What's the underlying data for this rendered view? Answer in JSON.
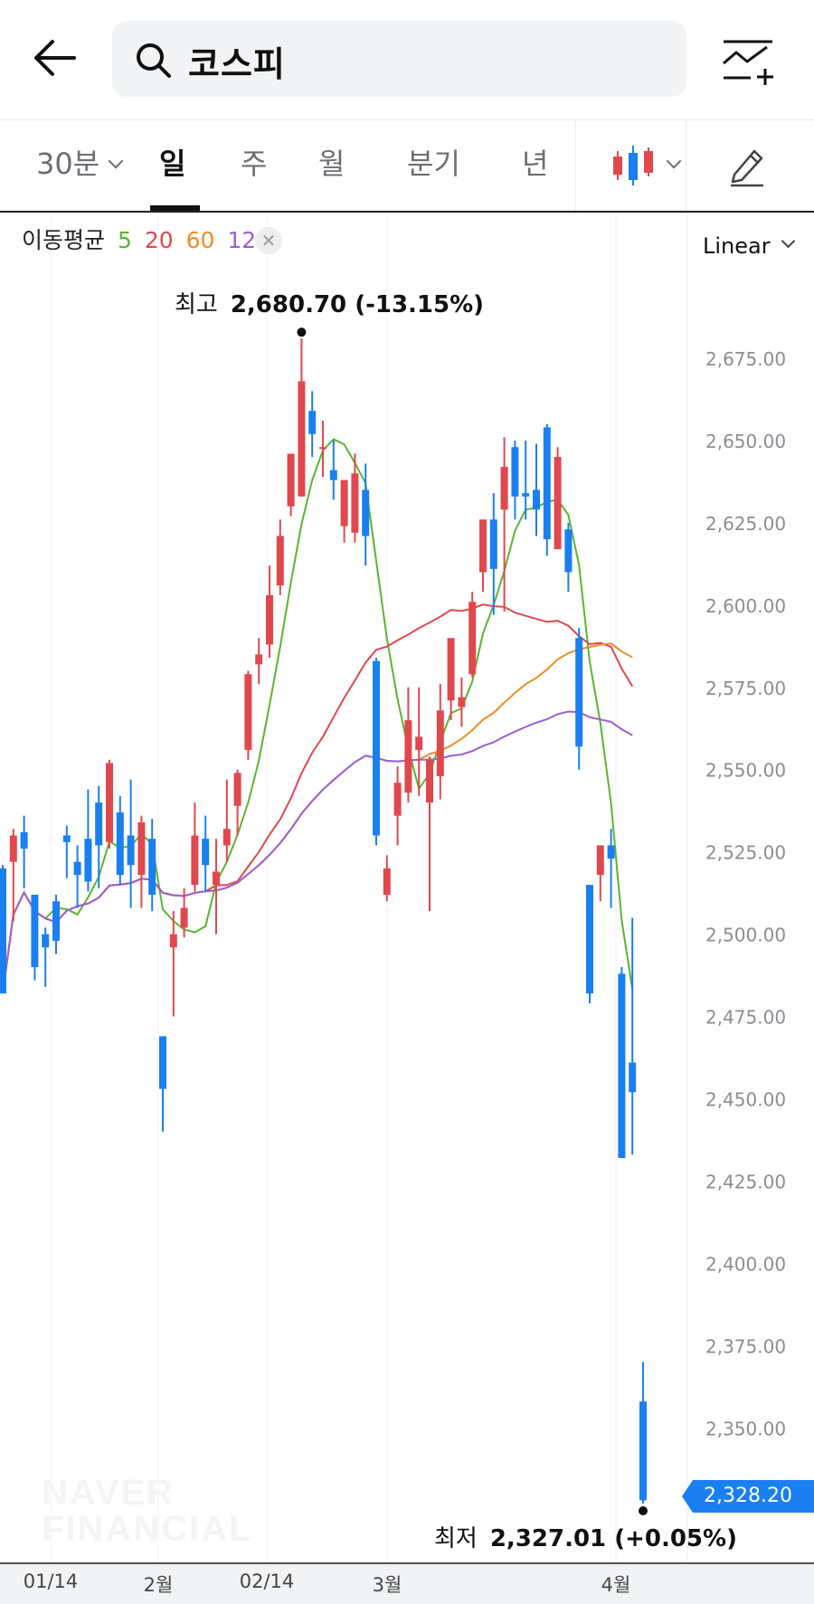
{
  "header": {
    "search_query": "코스피"
  },
  "tabs": [
    {
      "label": "30분",
      "dropdown": true
    },
    {
      "label": "일",
      "active": true
    },
    {
      "label": "주"
    },
    {
      "label": "월"
    },
    {
      "label": "분기"
    },
    {
      "label": "년"
    }
  ],
  "chart_style_icon": "candlestick-icon",
  "moving_average": {
    "label": "이동평균",
    "periods": [
      {
        "text": "5",
        "color": "#5cb531"
      },
      {
        "text": "20",
        "color": "#e0484e"
      },
      {
        "text": "60",
        "color": "#f08c26"
      },
      {
        "text": "120",
        "color": "#9b5fd2"
      }
    ]
  },
  "scale_selector": "Linear",
  "high_marker": {
    "label": "최고",
    "value": "2,680.70 (-13.15%)"
  },
  "low_marker": {
    "label": "최저",
    "value": "2,327.01 (+0.05%)"
  },
  "current_price": "2,328.20",
  "watermark": [
    "NAVER",
    "FINANCIAL"
  ],
  "colors": {
    "up": "#e0484e",
    "down": "#1a7ff0"
  },
  "chart_data": {
    "type": "candlestick",
    "y_tick_labels": [
      "2,675.00",
      "2,650.00",
      "2,625.00",
      "2,600.00",
      "2,575.00",
      "2,550.00",
      "2,525.00",
      "2,500.00",
      "2,475.00",
      "2,450.00",
      "2,425.00",
      "2,400.00",
      "2,375.00",
      "2,350.00"
    ],
    "ylim": [
      2320,
      2700
    ],
    "x_tick_labels": [
      "01/14",
      "2월",
      "02/14",
      "3월",
      "4월"
    ],
    "candles": [
      [
        2520,
        2521,
        2482,
        2482
      ],
      [
        2522,
        2532,
        2504,
        2530
      ],
      [
        2531,
        2536,
        2514,
        2526
      ],
      [
        2512,
        2512,
        2486,
        2490
      ],
      [
        2500,
        2502,
        2484,
        2496
      ],
      [
        2510,
        2512,
        2494,
        2498
      ],
      [
        2530,
        2533,
        2517,
        2528
      ],
      [
        2522,
        2527,
        2508,
        2518
      ],
      [
        2529,
        2544,
        2513,
        2516
      ],
      [
        2540,
        2545,
        2514,
        2527
      ],
      [
        2528,
        2553,
        2526,
        2552
      ],
      [
        2537,
        2542,
        2515,
        2518
      ],
      [
        2530,
        2547,
        2508,
        2521
      ],
      [
        2518,
        2536,
        2508,
        2534
      ],
      [
        2529,
        2535,
        2507,
        2512
      ],
      [
        2469,
        2469,
        2440,
        2453
      ],
      [
        2496,
        2507,
        2475,
        2500
      ],
      [
        2502,
        2514,
        2499,
        2508
      ],
      [
        2515,
        2540,
        2513,
        2530
      ],
      [
        2529,
        2536,
        2513,
        2521
      ],
      [
        2515,
        2529,
        2500,
        2519
      ],
      [
        2527,
        2547,
        2522,
        2532
      ],
      [
        2539,
        2550,
        2530,
        2549
      ],
      [
        2556,
        2580,
        2553,
        2579
      ],
      [
        2582,
        2590,
        2576,
        2585
      ],
      [
        2588,
        2612,
        2584,
        2603
      ],
      [
        2606,
        2626,
        2603,
        2621
      ],
      [
        2630,
        2646,
        2627,
        2646
      ],
      [
        2633,
        2681,
        2633,
        2668
      ],
      [
        2659,
        2665,
        2645,
        2652
      ],
      [
        2648,
        2656,
        2639,
        2648
      ],
      [
        2641,
        2650,
        2632,
        2638
      ],
      [
        2624,
        2637,
        2619,
        2638
      ],
      [
        2622,
        2646,
        2619,
        2640
      ],
      [
        2635,
        2643,
        2612,
        2621
      ],
      [
        2583,
        2584,
        2527,
        2530
      ],
      [
        2512,
        2524,
        2510,
        2520
      ],
      [
        2536,
        2551,
        2527,
        2546
      ],
      [
        2543,
        2575,
        2540,
        2565
      ],
      [
        2556,
        2575,
        2542,
        2560
      ],
      [
        2540,
        2554,
        2507,
        2553
      ],
      [
        2548,
        2576,
        2541,
        2568
      ],
      [
        2571,
        2588,
        2565,
        2590
      ],
      [
        2569,
        2578,
        2563,
        2572
      ],
      [
        2579,
        2604,
        2578,
        2601
      ],
      [
        2610,
        2626,
        2604,
        2626
      ],
      [
        2626,
        2634,
        2597,
        2611
      ],
      [
        2629,
        2651,
        2598,
        2642
      ],
      [
        2648,
        2650,
        2626,
        2633
      ],
      [
        2634,
        2650,
        2626,
        2633
      ],
      [
        2635,
        2649,
        2621,
        2629
      ],
      [
        2654,
        2655,
        2615,
        2620
      ],
      [
        2617,
        2648,
        2617,
        2645
      ],
      [
        2623,
        2625,
        2604,
        2610
      ],
      [
        2590,
        2593,
        2550,
        2557
      ],
      [
        2515,
        2515,
        2479,
        2482
      ],
      [
        2518,
        2526,
        2510,
        2527
      ],
      [
        2527,
        2532,
        2508,
        2523
      ],
      [
        2488,
        2490,
        2433,
        2432
      ],
      [
        2461,
        2505,
        2433,
        2452
      ],
      [
        2358,
        2370,
        2327,
        2328
      ]
    ]
  }
}
